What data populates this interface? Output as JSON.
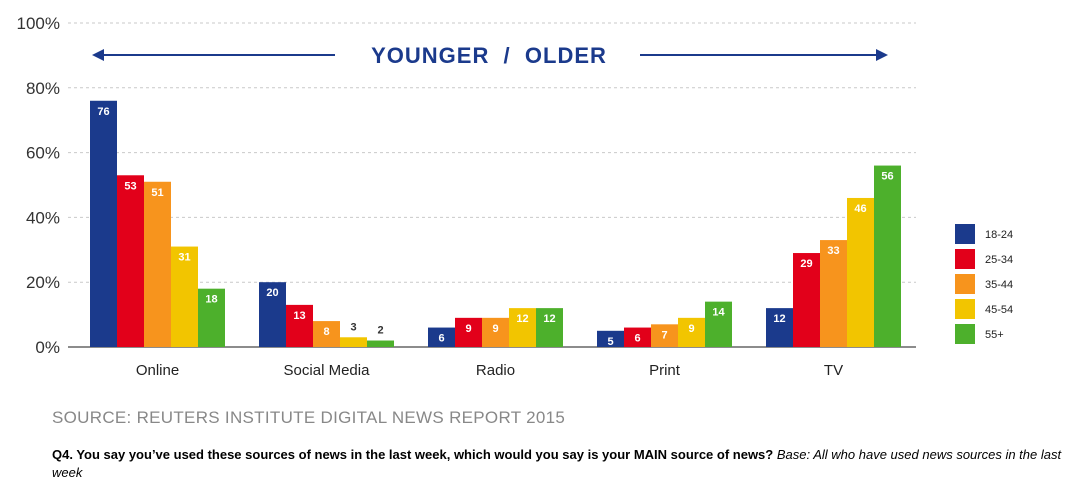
{
  "chart_data": {
    "type": "bar",
    "categories": [
      "Online",
      "Social Media",
      "Radio",
      "Print",
      "TV"
    ],
    "series": [
      {
        "name": "18-24",
        "color": "#1b3a8c",
        "values": [
          76,
          20,
          6,
          5,
          12
        ]
      },
      {
        "name": "25-34",
        "color": "#e2001a",
        "values": [
          53,
          13,
          9,
          6,
          29
        ]
      },
      {
        "name": "35-44",
        "color": "#f7941d",
        "values": [
          51,
          8,
          9,
          7,
          33
        ]
      },
      {
        "name": "45-54",
        "color": "#f2c500",
        "values": [
          31,
          3,
          12,
          9,
          46
        ]
      },
      {
        "name": "55+",
        "color": "#4db02c",
        "values": [
          18,
          2,
          12,
          14,
          56
        ]
      }
    ],
    "ylim": [
      0,
      100
    ],
    "yticks": [
      "0%",
      "20%",
      "40%",
      "60%",
      "80%",
      "100%"
    ],
    "ytick_values": [
      0,
      20,
      40,
      60,
      80,
      100
    ],
    "banner": "YOUNGER  /  OLDER",
    "legend_position": "right",
    "grid": true
  },
  "source": "SOURCE: REUTERS INSTITUTE DIGITAL NEWS REPORT 2015",
  "question": {
    "bold": "Q4. You say you’ve used these sources of news in the last week, which would you say is your MAIN source of news?",
    "italic": "Base: All who have used news sources in the last week"
  }
}
